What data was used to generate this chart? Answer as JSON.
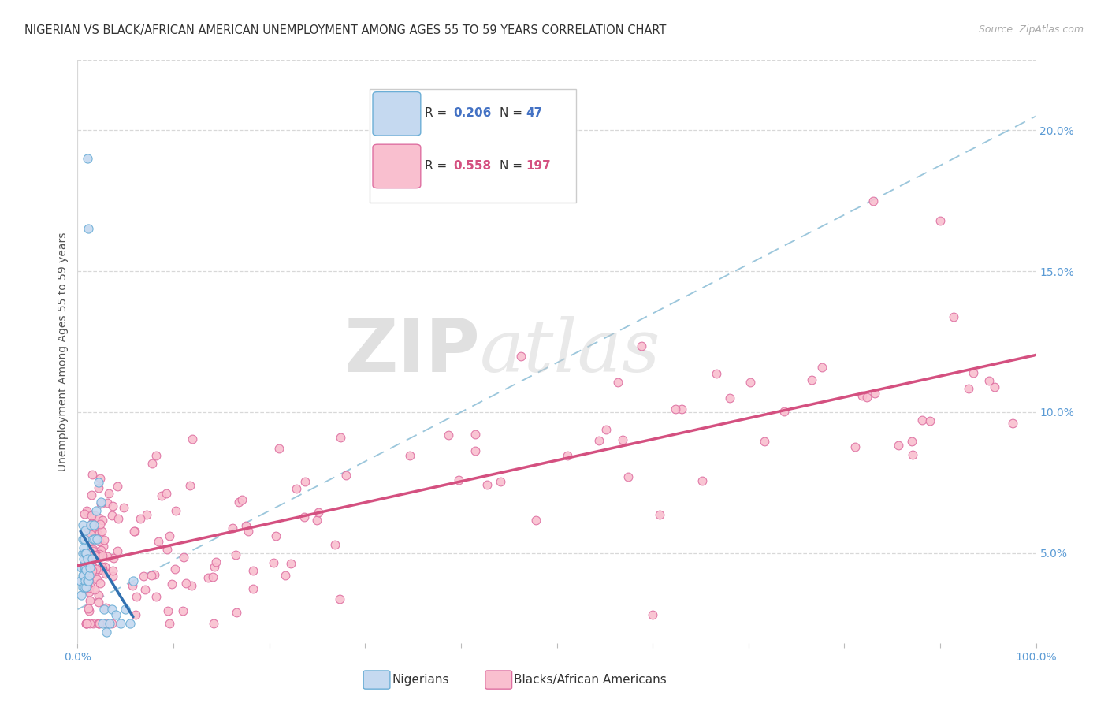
{
  "title": "NIGERIAN VS BLACK/AFRICAN AMERICAN UNEMPLOYMENT AMONG AGES 55 TO 59 YEARS CORRELATION CHART",
  "source": "Source: ZipAtlas.com",
  "ylabel": "Unemployment Among Ages 55 to 59 years",
  "nigerian_R": "0.206",
  "nigerian_N": "47",
  "black_R": "0.558",
  "black_N": "197",
  "nigerian_fill": "#c5d9f0",
  "nigerian_edge": "#6baed6",
  "black_fill": "#f9bfcf",
  "black_edge": "#de6fa1",
  "nigerian_line": "#3070b0",
  "black_line": "#d45080",
  "dashed_line": "#90c0d8",
  "bg_color": "#ffffff",
  "grid_color": "#d8d8d8",
  "title_color": "#333333",
  "tick_color": "#5b9bd5",
  "legend_label_color": "#333333",
  "R_nig_color": "#4472c4",
  "N_nig_color": "#4472c4",
  "R_blk_color": "#d45080",
  "N_blk_color": "#d45080",
  "xlim": [
    0.0,
    1.0
  ],
  "ylim": [
    0.018,
    0.225
  ],
  "yticks": [
    0.05,
    0.1,
    0.15,
    0.2
  ],
  "ytick_labels": [
    "5.0%",
    "10.0%",
    "15.0%",
    "20.0%"
  ],
  "xtick_show": [
    "0.0%",
    "100.0%"
  ],
  "watermark_zip": "ZIP",
  "watermark_atlas": "atlas",
  "seed": 99
}
